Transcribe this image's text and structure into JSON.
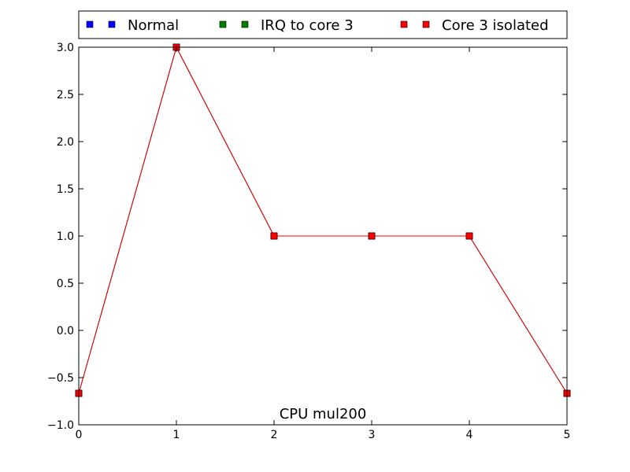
{
  "chart_data": {
    "type": "line",
    "caption": "CPU mul200",
    "xlim": [
      0,
      5
    ],
    "ylim": [
      -1.0,
      3.0
    ],
    "x_ticks": [
      0,
      1,
      2,
      3,
      4,
      5
    ],
    "x_tick_labels": [
      "0",
      "1",
      "2",
      "3",
      "4",
      "5"
    ],
    "y_ticks": [
      -1.0,
      -0.5,
      0.0,
      0.5,
      1.0,
      1.5,
      2.0,
      2.5,
      3.0
    ],
    "y_tick_labels": [
      "−1.0",
      "−0.5",
      "0.0",
      "0.5",
      "1.0",
      "1.5",
      "2.0",
      "2.5",
      "3.0"
    ],
    "grid": false,
    "legend_position": "top",
    "series": [
      {
        "name": "Normal",
        "color": "#0000ff",
        "x": [
          0,
          1,
          2,
          3,
          4,
          5
        ],
        "y": [
          -0.667,
          3,
          1,
          1,
          1,
          -0.667
        ]
      },
      {
        "name": "IRQ to core 3",
        "color": "#008000",
        "x": [
          0,
          1,
          2,
          3,
          4,
          5
        ],
        "y": [
          -0.667,
          3,
          1,
          1,
          1,
          -0.667
        ]
      },
      {
        "name": "Core 3 isolated",
        "color": "#ff0000",
        "x": [
          0,
          1,
          2,
          3,
          4,
          5
        ],
        "y": [
          -0.667,
          3,
          1,
          1,
          1,
          -0.667
        ]
      }
    ]
  }
}
